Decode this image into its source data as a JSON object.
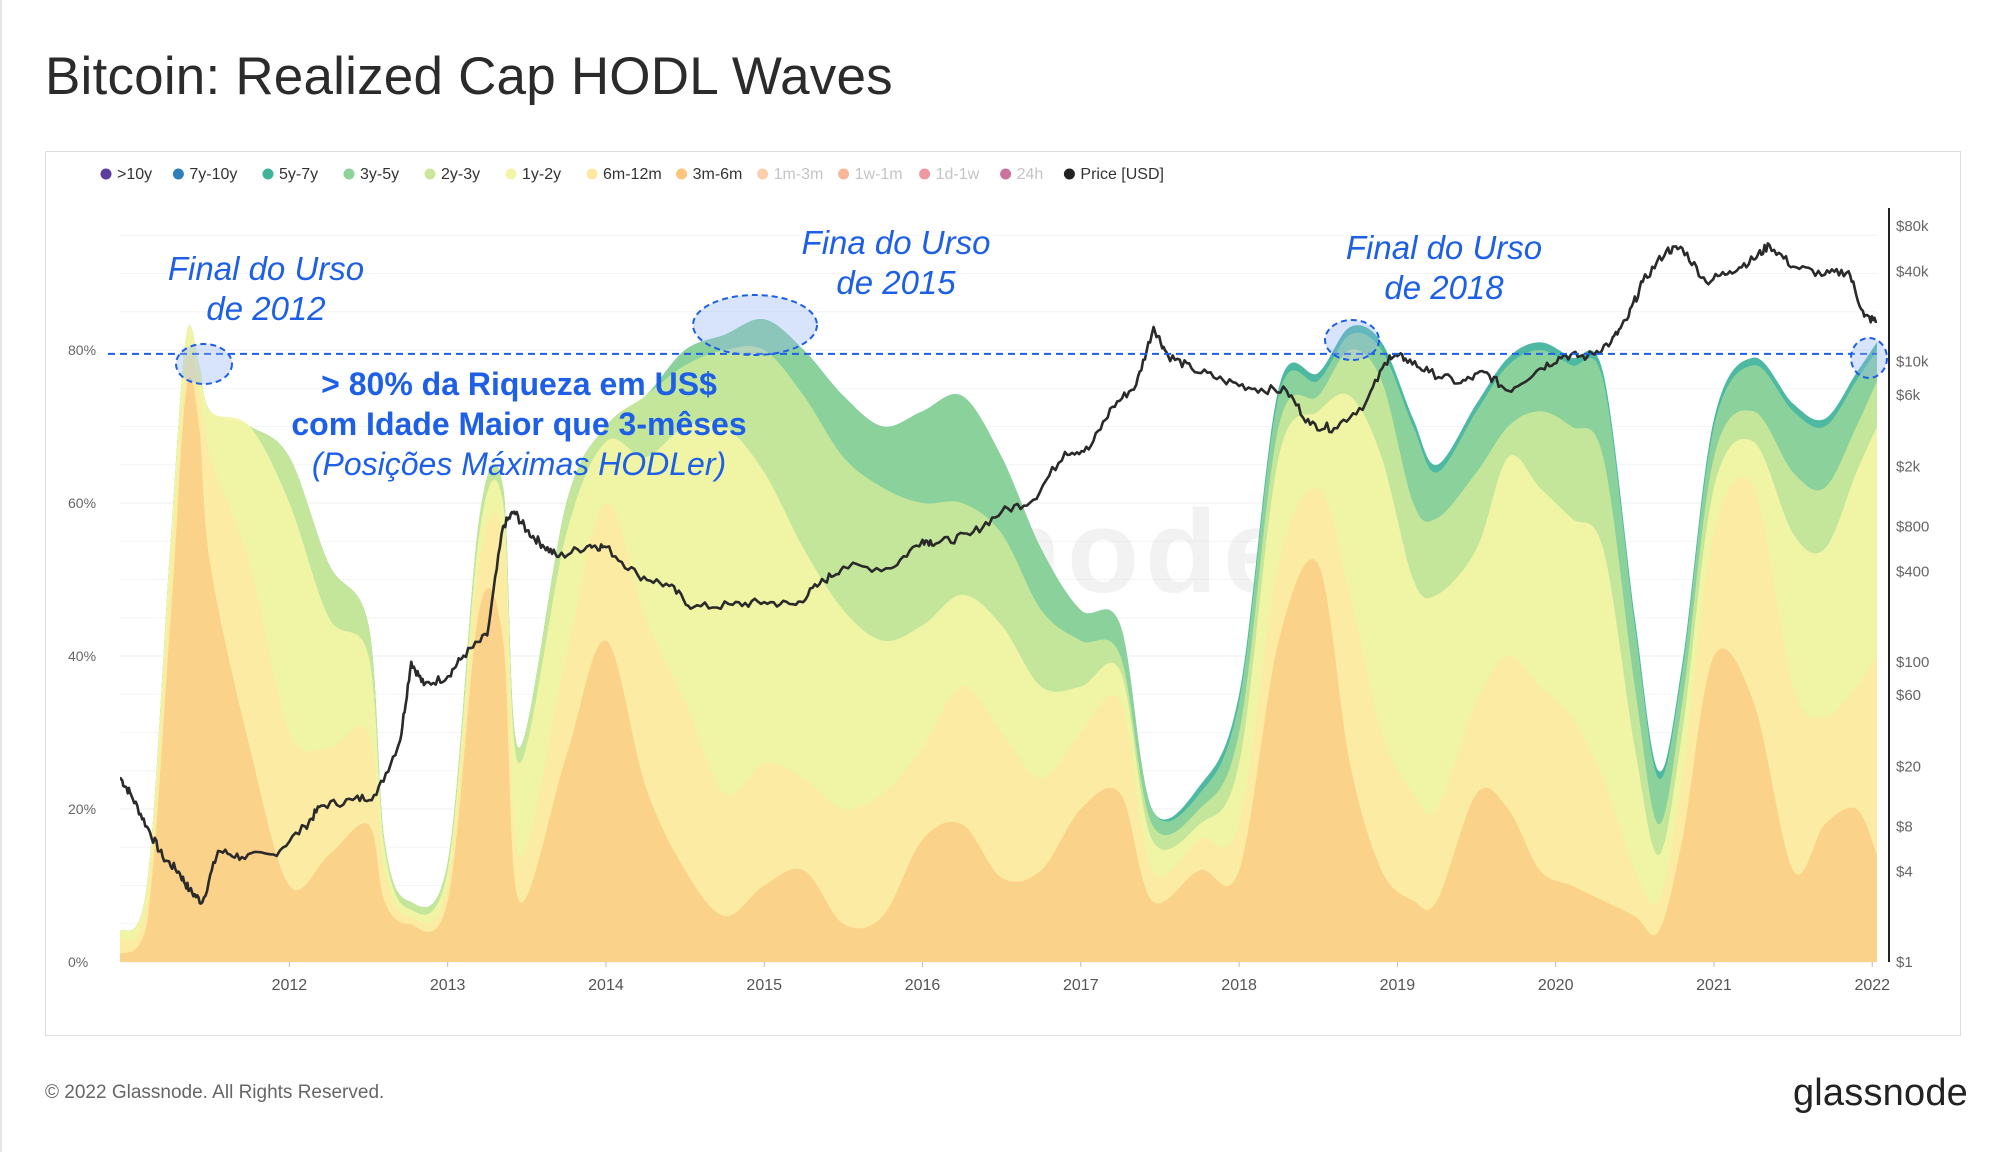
{
  "title": "Bitcoin: Realized Cap HODL Waves",
  "footer": {
    "copyright": "© 2022 Glassnode. All Rights Reserved.",
    "logo": "glassnode"
  },
  "watermark": "glassnode",
  "legend": [
    {
      "label": ">10y",
      "color": "#5b3d9c",
      "active": true
    },
    {
      "label": "7y-10y",
      "color": "#2f7fb8",
      "active": true
    },
    {
      "label": "5y-7y",
      "color": "#3fb39a",
      "active": true
    },
    {
      "label": "3y-5y",
      "color": "#8fd29a",
      "active": true
    },
    {
      "label": "2y-3y",
      "color": "#c9e79a",
      "active": true
    },
    {
      "label": "1y-2y",
      "color": "#f3f5a6",
      "active": true
    },
    {
      "label": "6m-12m",
      "color": "#fde9a2",
      "active": true
    },
    {
      "label": "3m-6m",
      "color": "#fbc57c",
      "active": true
    },
    {
      "label": "1m-3m",
      "color": "#f7a86a",
      "active": false
    },
    {
      "label": "1w-1m",
      "color": "#f07846",
      "active": false
    },
    {
      "label": "1d-1w",
      "color": "#e0464f",
      "active": false
    },
    {
      "label": "24h",
      "color": "#a0004e",
      "active": false
    },
    {
      "label": "Price [USD]",
      "color": "#222222",
      "active": true
    }
  ],
  "annotations": {
    "bear2012": [
      "Final do Urso",
      "de 2012"
    ],
    "bear2015": [
      "Fina do Urso",
      "de 2015"
    ],
    "bear2018": [
      "Final do Urso",
      "de 2018"
    ],
    "callout_bold_1": "> 80% da Riqueza em US$",
    "callout_bold_2": "com Idade Maior que 3-mêses",
    "callout_italic": "(Posições Máximas HODLer)",
    "threshold_percent": 79.5
  },
  "chart_data": {
    "type": "area",
    "x_label": "",
    "y_left_label": "",
    "y_right_label": "",
    "x_range": [
      2011.43,
      2022.53
    ],
    "x_ticks": [
      "2012",
      "2013",
      "2014",
      "2015",
      "2016",
      "2017",
      "2018",
      "2019",
      "2020",
      "2021",
      "2022"
    ],
    "y_left_ticks": [
      "0%",
      "20%",
      "40%",
      "60%",
      "80%"
    ],
    "y_left_range": [
      0,
      100
    ],
    "y_right_ticks": [
      "$1",
      "$4",
      "$8",
      "$20",
      "$60",
      "$100",
      "$400",
      "$800",
      "$2k",
      "$6k",
      "$10k",
      "$40k",
      "$80k"
    ],
    "y_right_scale": "log",
    "y_right_range": [
      1,
      125000
    ],
    "x": [
      2011.43,
      2011.6,
      2011.75,
      2011.85,
      2011.93,
      2012.0,
      2012.25,
      2012.5,
      2012.75,
      2013.0,
      2013.1,
      2013.25,
      2013.5,
      2013.7,
      2013.85,
      2013.95,
      2014.25,
      2014.5,
      2014.75,
      2015.0,
      2015.25,
      2015.5,
      2015.75,
      2016.0,
      2016.25,
      2016.5,
      2016.75,
      2017.0,
      2017.25,
      2017.5,
      2017.75,
      2017.95,
      2018.25,
      2018.5,
      2018.75,
      2019.0,
      2019.2,
      2019.4,
      2019.6,
      2019.75,
      2020.0,
      2020.2,
      2020.4,
      2020.6,
      2020.8,
      2021.0,
      2021.15,
      2021.3,
      2021.5,
      2021.75,
      2022.0,
      2022.2,
      2022.4,
      2022.53
    ],
    "series": [
      {
        "name": "3m-6m",
        "cumulative": [
          1,
          5,
          45,
          75,
          70,
          52,
          28,
          10,
          14,
          18,
          8,
          5,
          8,
          46,
          42,
          8,
          27,
          42,
          23,
          12,
          6,
          10,
          12,
          5,
          6,
          16,
          18,
          11,
          12,
          20,
          22,
          8,
          12,
          12,
          42,
          52,
          26,
          12,
          8,
          8,
          22,
          20,
          12,
          10,
          8,
          6,
          4,
          16,
          40,
          34,
          12,
          18,
          20,
          14
        ]
      },
      {
        "name": "6m-12m",
        "cumulative": [
          3,
          8,
          50,
          78,
          75,
          66,
          52,
          30,
          28,
          30,
          12,
          6,
          10,
          52,
          55,
          14,
          40,
          60,
          45,
          34,
          22,
          26,
          24,
          20,
          22,
          28,
          36,
          30,
          24,
          30,
          34,
          12,
          16,
          18,
          52,
          62,
          48,
          30,
          22,
          20,
          34,
          40,
          36,
          32,
          24,
          12,
          8,
          24,
          56,
          62,
          36,
          32,
          36,
          40
        ]
      },
      {
        "name": "1y-2y",
        "cumulative": [
          4,
          10,
          55,
          82,
          78,
          72,
          70,
          60,
          45,
          40,
          15,
          7,
          12,
          56,
          60,
          26,
          56,
          68,
          66,
          70,
          70,
          64,
          54,
          46,
          42,
          44,
          48,
          44,
          36,
          36,
          38,
          16,
          18,
          26,
          66,
          72,
          74,
          66,
          50,
          48,
          54,
          66,
          62,
          58,
          54,
          28,
          14,
          30,
          62,
          68,
          56,
          54,
          64,
          70
        ]
      },
      {
        "name": "2y-3y",
        "cumulative": [
          4,
          10,
          55,
          82,
          78,
          72,
          70,
          66,
          52,
          44,
          16,
          8,
          13,
          58,
          62,
          28,
          60,
          70,
          74,
          78,
          80,
          80,
          74,
          66,
          62,
          60,
          60,
          56,
          46,
          42,
          40,
          18,
          20,
          30,
          70,
          74,
          80,
          76,
          60,
          58,
          64,
          70,
          72,
          70,
          66,
          36,
          18,
          34,
          66,
          72,
          64,
          62,
          70,
          76
        ]
      },
      {
        "name": "3y-5y",
        "cumulative": [
          4,
          10,
          55,
          82,
          78,
          72,
          70,
          66,
          52,
          44,
          16,
          8,
          13,
          58,
          62,
          28,
          60,
          70,
          74,
          80,
          82,
          84,
          80,
          74,
          70,
          72,
          74,
          66,
          54,
          46,
          44,
          20,
          22,
          34,
          74,
          76,
          82,
          80,
          70,
          64,
          72,
          78,
          80,
          78,
          76,
          44,
          24,
          38,
          70,
          78,
          72,
          70,
          76,
          80
        ]
      },
      {
        "name": "5y-7y",
        "cumulative": [
          4,
          10,
          55,
          82,
          78,
          72,
          70,
          66,
          52,
          44,
          16,
          8,
          13,
          58,
          62,
          28,
          60,
          70,
          74,
          80,
          82,
          84,
          80,
          74,
          70,
          72,
          74,
          66,
          54,
          46,
          44,
          20,
          23,
          35,
          75,
          77,
          83,
          81,
          71,
          65,
          73,
          79,
          81,
          79,
          77,
          45,
          25,
          39,
          71,
          79,
          73,
          71,
          77,
          81
        ]
      }
    ],
    "price_usd": {
      "x": [
        2011.43,
        2011.5,
        2011.6,
        2011.7,
        2011.8,
        2011.87,
        2011.95,
        2012.05,
        2012.2,
        2012.4,
        2012.6,
        2012.7,
        2012.9,
        2013.05,
        2013.2,
        2013.27,
        2013.35,
        2013.5,
        2013.6,
        2013.75,
        2013.85,
        2013.92,
        2014.0,
        2014.1,
        2014.2,
        2014.4,
        2014.5,
        2014.7,
        2014.9,
        2015.05,
        2015.3,
        2015.5,
        2015.7,
        2015.85,
        2016.0,
        2016.3,
        2016.5,
        2016.6,
        2016.8,
        2017.0,
        2017.2,
        2017.4,
        2017.55,
        2017.7,
        2017.85,
        2017.96,
        2018.05,
        2018.2,
        2018.4,
        2018.6,
        2018.8,
        2018.95,
        2019.1,
        2019.3,
        2019.45,
        2019.55,
        2019.7,
        2019.9,
        2020.05,
        2020.2,
        2020.4,
        2020.55,
        2020.7,
        2020.85,
        2020.95,
        2021.05,
        2021.2,
        2021.3,
        2021.45,
        2021.6,
        2021.75,
        2021.85,
        2022.0,
        2022.2,
        2022.35,
        2022.45,
        2022.53
      ],
      "y": [
        17,
        13,
        8,
        5,
        4,
        3,
        2.5,
        5.5,
        5,
        5.2,
        8,
        11,
        12,
        13,
        30,
        100,
        70,
        80,
        110,
        150,
        800,
        1000,
        750,
        600,
        500,
        600,
        580,
        380,
        320,
        230,
        240,
        250,
        240,
        330,
        430,
        420,
        650,
        620,
        700,
        1000,
        1200,
        2500,
        2600,
        5000,
        7000,
        17000,
        11000,
        9000,
        7500,
        6600,
        6400,
        3800,
        3600,
        5300,
        11000,
        10500,
        8500,
        7200,
        8500,
        6400,
        9000,
        11000,
        10800,
        13500,
        19000,
        34000,
        55000,
        57000,
        34000,
        40000,
        48000,
        60000,
        43000,
        38000,
        40000,
        20000,
        18500
      ]
    }
  }
}
